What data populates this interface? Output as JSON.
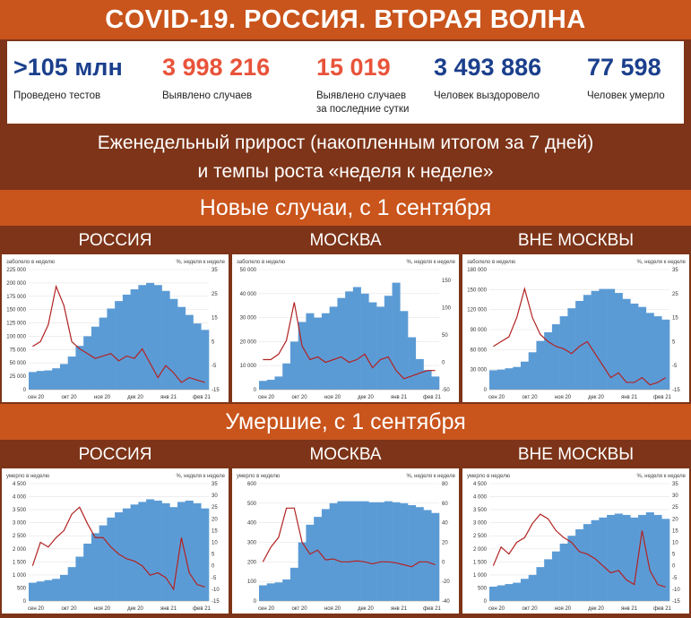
{
  "title": "COVID-19. РОССИЯ. ВТОРАЯ ВОЛНА",
  "stats": [
    {
      "value": ">105 млн",
      "label": "Проведено тестов",
      "label2": "",
      "color": "#1b3f8c"
    },
    {
      "value": "3 998 216",
      "label": "Выявлено случаев",
      "label2": "",
      "color": "#e8533a"
    },
    {
      "value": "15 019",
      "label": "Выявлено случаев",
      "label2": "за последние сутки",
      "color": "#e8533a"
    },
    {
      "value": "3 493 886",
      "label": "Человек выздоровело",
      "label2": "",
      "color": "#1b3f8c"
    },
    {
      "value": "77 598",
      "label": "Человек умерло",
      "label2": "",
      "color": "#1b3f8c"
    }
  ],
  "subtitle": {
    "line1": "Еженедельный прирост (накопленным итогом за 7 дней)",
    "line2": "и темпы роста «неделя к неделе»"
  },
  "sections": {
    "cases": "Новые случаи, с 1 сентября",
    "deaths": "Умершие, с 1 сентября"
  },
  "panel_headers": [
    "РОССИЯ",
    "МОСКВА",
    "ВНЕ МОСКВЫ"
  ],
  "colors": {
    "bar": "#5b9bd5",
    "line": "#b22222"
  },
  "chart_data": [
    {
      "type": "bar",
      "id": "cases-russia",
      "left_label": "заболело в неделю",
      "right_label": "%, неделя к неделе",
      "y_ticks": [
        "0",
        "25 000",
        "50 000",
        "75 000",
        "100 000",
        "125 000",
        "150 000",
        "175 000",
        "200 000",
        "225 000"
      ],
      "ylim": [
        0,
        225000
      ],
      "y2_ticks": [
        "-15",
        "-5",
        "5",
        "15",
        "25",
        "35"
      ],
      "y2lim": [
        -15,
        35
      ],
      "x_labels": [
        "сен 20",
        "окт 20",
        "ноя 20",
        "дек 20",
        "янв 21",
        "фев 21"
      ],
      "bars": [
        33000,
        35000,
        36000,
        40000,
        48000,
        62000,
        82000,
        100000,
        118000,
        135000,
        152000,
        166000,
        178000,
        188000,
        196000,
        200000,
        196000,
        185000,
        170000,
        155000,
        140000,
        124000,
        112000
      ],
      "growth": [
        3,
        5,
        12,
        28,
        20,
        5,
        2,
        0,
        -2,
        -1,
        0,
        -3,
        -1,
        -2,
        2,
        -4,
        -10,
        -5,
        -8,
        -12,
        -10,
        -11,
        -12
      ]
    },
    {
      "type": "bar",
      "id": "cases-moscow",
      "left_label": "заболело в неделю",
      "right_label": "%, неделя к неделе",
      "y_ticks": [
        "0",
        "10 000",
        "20 000",
        "30 000",
        "40 000",
        "50 000"
      ],
      "ylim": [
        0,
        55000
      ],
      "y2_ticks": [
        "-50",
        "0",
        "50",
        "100",
        "150"
      ],
      "y2lim": [
        -50,
        170
      ],
      "x_labels": [
        "сен 20",
        "окт 20",
        "ноя 20",
        "дек 20",
        "янв 21",
        "фев 21"
      ],
      "bars": [
        4000,
        4500,
        6000,
        12000,
        22000,
        31000,
        35000,
        33000,
        35000,
        38000,
        42000,
        45000,
        47000,
        44000,
        40000,
        38000,
        43000,
        49000,
        36000,
        24000,
        14000,
        9000,
        6000
      ],
      "growth": [
        5,
        5,
        15,
        40,
        110,
        30,
        5,
        10,
        0,
        5,
        10,
        0,
        5,
        15,
        -10,
        5,
        10,
        -15,
        -30,
        -25,
        -20,
        -15,
        -15
      ]
    },
    {
      "type": "bar",
      "id": "cases-outside",
      "left_label": "заболело в неделю",
      "right_label": "%, неделя к неделе",
      "y_ticks": [
        "0",
        "30 000",
        "60 000",
        "90 000",
        "120 000",
        "150 000",
        "180 000"
      ],
      "ylim": [
        0,
        180000
      ],
      "y2_ticks": [
        "-15",
        "-5",
        "5",
        "15",
        "25",
        "35"
      ],
      "y2lim": [
        -15,
        35
      ],
      "x_labels": [
        "сен 20",
        "окт 20",
        "ноя 20",
        "дек 20",
        "янв 21",
        "фев 21"
      ],
      "bars": [
        29000,
        30000,
        32000,
        34000,
        42000,
        56000,
        73000,
        86000,
        98000,
        110000,
        122000,
        133000,
        142000,
        148000,
        151000,
        151000,
        145000,
        136000,
        129000,
        124000,
        115000,
        110000,
        105000
      ],
      "growth": [
        3,
        5,
        7,
        15,
        27,
        15,
        8,
        5,
        3,
        2,
        0,
        3,
        5,
        0,
        -5,
        -10,
        -8,
        -12,
        -12,
        -10,
        -13,
        -12,
        -10
      ]
    },
    {
      "type": "bar",
      "id": "deaths-russia",
      "left_label": "умерло в неделю",
      "right_label": "%, неделя к неделе",
      "y_ticks": [
        "0",
        "500",
        "1 000",
        "1 500",
        "2 000",
        "2 500",
        "3 000",
        "3 500",
        "4 000",
        "4 500"
      ],
      "ylim": [
        0,
        4500
      ],
      "y2_ticks": [
        "-15",
        "-10",
        "-5",
        "0",
        "5",
        "10",
        "15",
        "20",
        "25",
        "30",
        "35"
      ],
      "y2lim": [
        -15,
        35
      ],
      "x_labels": [
        "сен 20",
        "окт 20",
        "ноя 20",
        "дек 20",
        "янв 21",
        "фев 21"
      ],
      "bars": [
        700,
        750,
        800,
        850,
        1000,
        1300,
        1700,
        2200,
        2600,
        2900,
        3200,
        3400,
        3550,
        3700,
        3800,
        3900,
        3850,
        3750,
        3600,
        3800,
        3850,
        3750,
        3550
      ],
      "growth": [
        0,
        10,
        8,
        12,
        15,
        22,
        25,
        18,
        12,
        12,
        8,
        5,
        3,
        2,
        0,
        -4,
        -3,
        -5,
        -10,
        12,
        -3,
        -8,
        -9
      ]
    },
    {
      "type": "bar",
      "id": "deaths-moscow",
      "left_label": "умерло в неделю",
      "right_label": "%, неделя к неделе",
      "y_ticks": [
        "0",
        "100",
        "200",
        "300",
        "400",
        "500",
        "600"
      ],
      "ylim": [
        0,
        600
      ],
      "y2_ticks": [
        "-40",
        "-20",
        "0",
        "20",
        "40",
        "60",
        "80"
      ],
      "y2lim": [
        -40,
        80
      ],
      "x_labels": [
        "сен 20",
        "окт 20",
        "ноя 20",
        "дек 20",
        "янв 21",
        "фев 21"
      ],
      "bars": [
        80,
        90,
        95,
        110,
        170,
        300,
        390,
        430,
        470,
        500,
        510,
        510,
        510,
        510,
        505,
        505,
        510,
        505,
        500,
        490,
        480,
        465,
        450
      ],
      "growth": [
        0,
        15,
        25,
        55,
        55,
        20,
        8,
        12,
        2,
        3,
        0,
        0,
        1,
        0,
        -2,
        0,
        0,
        -1,
        -3,
        -5,
        0,
        0,
        -3
      ]
    },
    {
      "type": "bar",
      "id": "deaths-outside",
      "left_label": "умерло в неделю",
      "right_label": "%, неделя к неделе",
      "y_ticks": [
        "0",
        "500",
        "1 000",
        "1 500",
        "2 000",
        "2 500",
        "3 000",
        "3 500",
        "4 000",
        "4 500"
      ],
      "ylim": [
        0,
        4500
      ],
      "y2_ticks": [
        "-15",
        "-10",
        "-5",
        "0",
        "5",
        "10",
        "15",
        "20",
        "25",
        "30",
        "35"
      ],
      "y2lim": [
        -15,
        35
      ],
      "x_labels": [
        "сен 20",
        "окт 20",
        "ноя 20",
        "дек 20",
        "янв 21",
        "фев 21"
      ],
      "bars": [
        550,
        600,
        650,
        700,
        850,
        1000,
        1300,
        1600,
        1900,
        2200,
        2500,
        2750,
        2950,
        3100,
        3200,
        3300,
        3350,
        3300,
        3200,
        3300,
        3400,
        3300,
        3150
      ],
      "growth": [
        0,
        8,
        5,
        10,
        12,
        18,
        22,
        20,
        15,
        12,
        10,
        6,
        5,
        3,
        0,
        -3,
        -2,
        -6,
        -8,
        15,
        -2,
        -8,
        -9
      ]
    }
  ]
}
